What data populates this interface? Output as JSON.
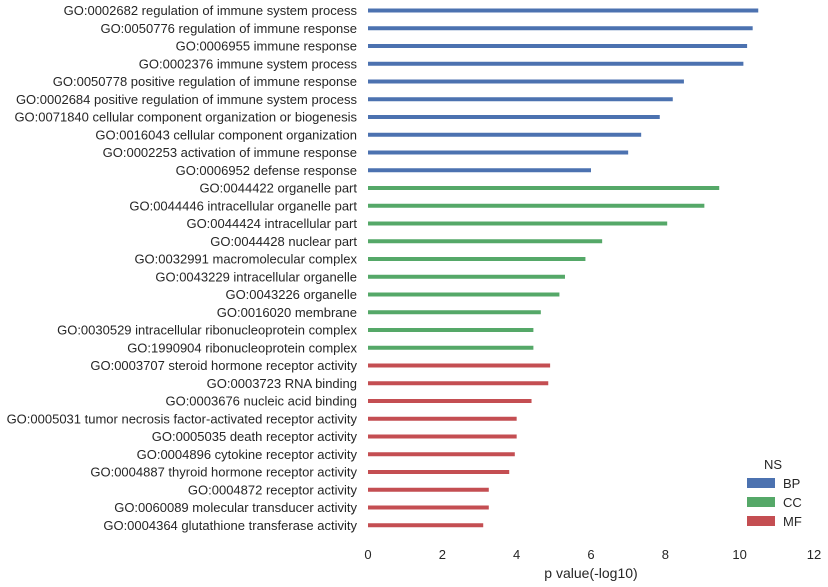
{
  "chart_data": {
    "type": "bar",
    "orientation": "horizontal",
    "title": "",
    "xlabel": "p value(-log10)",
    "ylabel": "",
    "xlim": [
      0,
      12
    ],
    "xticks": [
      0,
      2,
      4,
      6,
      8,
      10,
      12
    ],
    "grid": false,
    "legend": {
      "title": "NS",
      "placement": "bottom-right"
    },
    "series": [
      {
        "name": "BP",
        "color": "#4c72b0",
        "categories": [
          "GO:0002682 regulation of immune system process",
          "GO:0050776 regulation of immune response",
          "GO:0006955 immune response",
          "GO:0002376 immune system process",
          "GO:0050778 positive regulation of immune response",
          "GO:0002684 positive regulation of immune system process",
          "GO:0071840 cellular component organization or biogenesis",
          "GO:0016043 cellular component organization",
          "GO:0002253 activation of immune response",
          "GO:0006952 defense response"
        ],
        "values": [
          10.5,
          10.35,
          10.2,
          10.1,
          8.5,
          8.2,
          7.85,
          7.35,
          7.0,
          6.0
        ]
      },
      {
        "name": "CC",
        "color": "#55a868",
        "categories": [
          "GO:0044422 organelle part",
          "GO:0044446 intracellular organelle part",
          "GO:0044424 intracellular part",
          "GO:0044428 nuclear part",
          "GO:0032991 macromolecular complex",
          "GO:0043229 intracellular organelle",
          "GO:0043226 organelle",
          "GO:0016020 membrane",
          "GO:0030529 intracellular ribonucleoprotein complex",
          "GO:1990904 ribonucleoprotein complex"
        ],
        "values": [
          9.45,
          9.05,
          8.05,
          6.3,
          5.85,
          5.3,
          5.15,
          4.65,
          4.45,
          4.45
        ]
      },
      {
        "name": "MF",
        "color": "#c44e52",
        "categories": [
          "GO:0003707 steroid hormone receptor activity",
          "GO:0003723 RNA binding",
          "GO:0003676 nucleic acid binding",
          "GO:0005031 tumor necrosis factor-activated receptor activity",
          "GO:0005035 death receptor activity",
          "GO:0004896 cytokine receptor activity",
          "GO:0004887 thyroid hormone receptor activity",
          "GO:0004872 receptor activity",
          "GO:0060089 molecular transducer activity",
          "GO:0004364 glutathione transferase activity"
        ],
        "values": [
          4.9,
          4.85,
          4.4,
          4.0,
          4.0,
          3.95,
          3.8,
          3.25,
          3.25,
          3.1
        ]
      }
    ]
  }
}
